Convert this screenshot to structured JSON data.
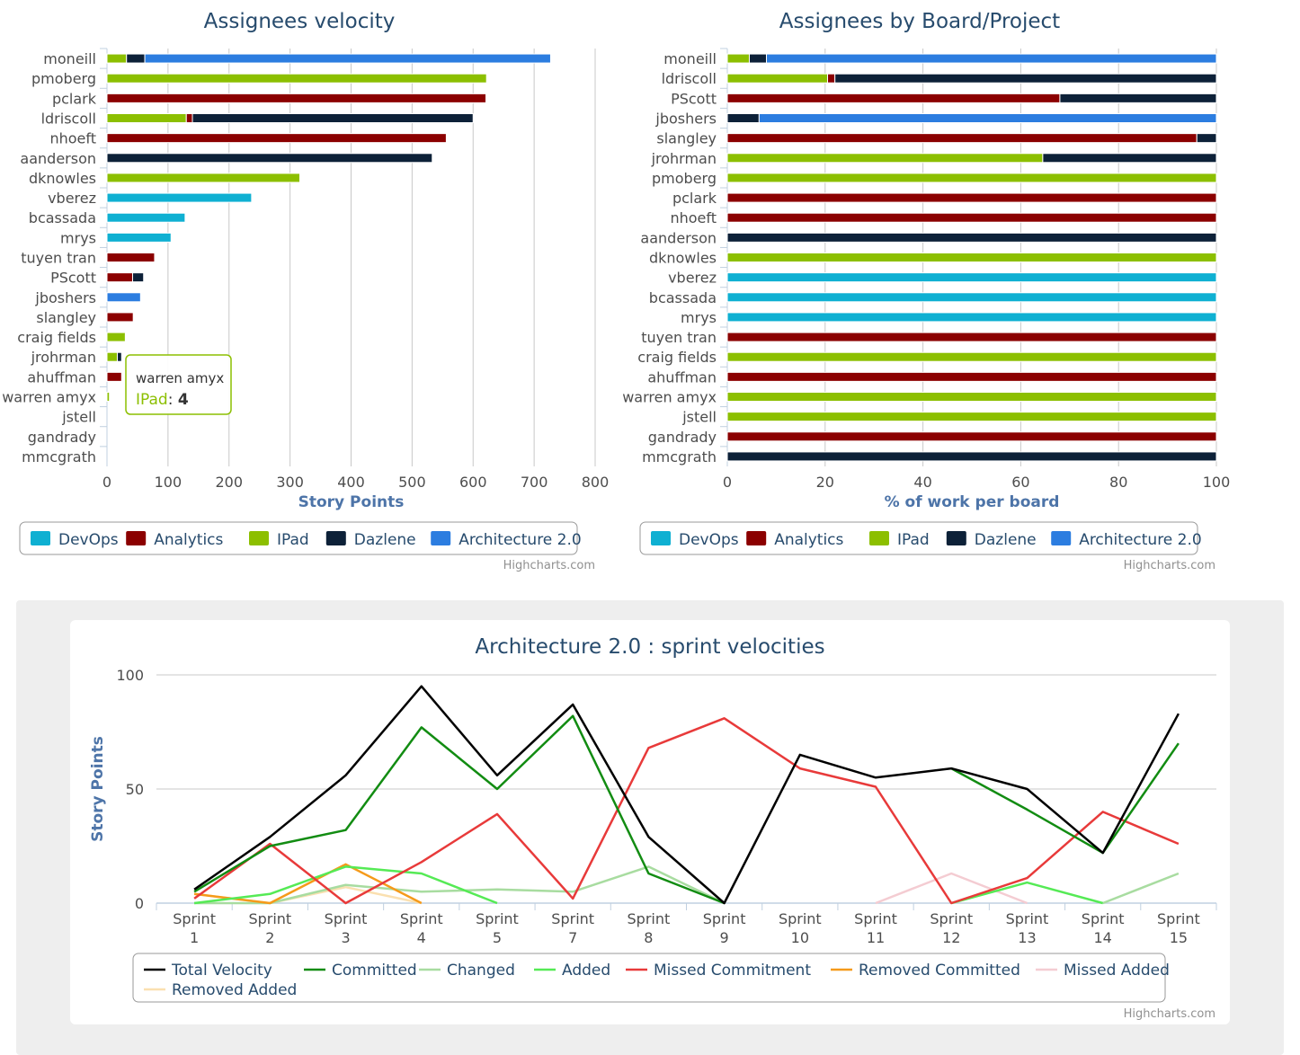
{
  "credits": "Highcharts.com",
  "colors": {
    "DevOps": "#0fb0d2",
    "Analytics": "#8b0000",
    "IPad": "#8cbf00",
    "Dazlene": "#0d2138",
    "Architecture 2.0": "#2c7de0"
  },
  "legend_boards": [
    "DevOps",
    "Analytics",
    "IPad",
    "Dazlene",
    "Architecture 2.0"
  ],
  "chart_data": [
    {
      "type": "bar",
      "title": "Assignees velocity",
      "xlabel": "",
      "ylabel": "Story Points",
      "ylim": [
        0,
        800
      ],
      "ticks": [
        0,
        100,
        200,
        300,
        400,
        500,
        600,
        700,
        800
      ],
      "grid": true,
      "stacked": true,
      "legend_position": "bottom-left",
      "categories": [
        "moneill",
        "pmoberg",
        "pclark",
        "ldriscoll",
        "nhoeft",
        "aanderson",
        "dknowles",
        "vberez",
        "bcassada",
        "mrys",
        "tuyen tran",
        "PScott",
        "jboshers",
        "slangley",
        "craig fields",
        "jrohrman",
        "ahuffman",
        "warren amyx",
        "jstell",
        "gandrady",
        "mmcgrath"
      ],
      "series": [
        {
          "name": "IPad",
          "values": [
            32,
            622,
            0,
            130,
            0,
            0,
            316,
            0,
            0,
            0,
            0,
            0,
            0,
            0,
            30,
            17,
            0,
            4,
            0,
            0,
            0
          ]
        },
        {
          "name": "Analytics",
          "values": [
            0,
            0,
            621,
            10,
            556,
            0,
            0,
            0,
            0,
            0,
            78,
            42,
            0,
            43,
            0,
            0,
            24,
            0,
            0,
            0,
            0
          ]
        },
        {
          "name": "Dazlene",
          "values": [
            30,
            0,
            0,
            460,
            0,
            533,
            0,
            0,
            0,
            0,
            0,
            18,
            0,
            0,
            0,
            7,
            0,
            0,
            0,
            0,
            0
          ]
        },
        {
          "name": "Architecture 2.0",
          "values": [
            665,
            0,
            0,
            0,
            0,
            0,
            0,
            0,
            0,
            0,
            0,
            0,
            55,
            0,
            0,
            0,
            0,
            0,
            0,
            0,
            0
          ]
        },
        {
          "name": "DevOps",
          "values": [
            0,
            0,
            0,
            0,
            0,
            0,
            0,
            237,
            128,
            105,
            0,
            0,
            0,
            0,
            0,
            0,
            0,
            0,
            0,
            0,
            0
          ]
        }
      ],
      "tooltip": {
        "name": "warren amyx",
        "series": "IPad",
        "value": "4"
      }
    },
    {
      "type": "bar",
      "title": "Assignees by Board/Project",
      "xlabel": "",
      "ylabel": "% of work per board",
      "ylim": [
        0,
        100
      ],
      "ticks": [
        0,
        20,
        40,
        60,
        80,
        100
      ],
      "grid": true,
      "stacked": true,
      "legend_position": "bottom-left",
      "categories": [
        "moneill",
        "ldriscoll",
        "PScott",
        "jboshers",
        "slangley",
        "jrohrman",
        "pmoberg",
        "pclark",
        "nhoeft",
        "aanderson",
        "dknowles",
        "vberez",
        "bcassada",
        "mrys",
        "tuyen tran",
        "craig fields",
        "ahuffman",
        "warren amyx",
        "jstell",
        "gandrady",
        "mmcgrath"
      ],
      "series": [
        {
          "name": "IPad",
          "values": [
            4.5,
            20.5,
            0,
            0,
            0,
            64.5,
            100,
            0,
            0,
            0,
            100,
            0,
            0,
            0,
            0,
            100,
            0,
            100,
            100,
            0,
            0
          ]
        },
        {
          "name": "Analytics",
          "values": [
            0,
            1.5,
            68,
            0,
            96,
            0,
            0,
            100,
            100,
            0,
            0,
            0,
            0,
            0,
            100,
            0,
            100,
            0,
            0,
            100,
            0
          ]
        },
        {
          "name": "Dazlene",
          "values": [
            3.5,
            78,
            32,
            6.5,
            4,
            35.5,
            0,
            0,
            0,
            100,
            0,
            0,
            0,
            0,
            0,
            0,
            0,
            0,
            0,
            0,
            100
          ]
        },
        {
          "name": "Architecture 2.0",
          "values": [
            92,
            0,
            0,
            93.5,
            0,
            0,
            0,
            0,
            0,
            0,
            0,
            0,
            0,
            0,
            0,
            0,
            0,
            0,
            0,
            0,
            0
          ]
        },
        {
          "name": "DevOps",
          "values": [
            0,
            0,
            0,
            0,
            0,
            0,
            0,
            0,
            0,
            0,
            0,
            100,
            100,
            100,
            0,
            0,
            0,
            0,
            0,
            0,
            0
          ]
        }
      ]
    },
    {
      "type": "line",
      "title": "Architecture 2.0 : sprint velocities",
      "xlabel": "",
      "ylabel": "Story Points",
      "ylim": [
        0,
        100
      ],
      "ticks": [
        0,
        50,
        100
      ],
      "grid": true,
      "legend_position": "bottom",
      "categories": [
        [
          "Sprint",
          "1"
        ],
        [
          "Sprint",
          "2"
        ],
        [
          "Sprint",
          "3"
        ],
        [
          "Sprint",
          "4"
        ],
        [
          "Sprint",
          "5"
        ],
        [
          "Sprint",
          "7"
        ],
        [
          "Sprint",
          "8"
        ],
        [
          "Sprint",
          "9"
        ],
        [
          "Sprint",
          "10"
        ],
        [
          "Sprint",
          "11"
        ],
        [
          "Sprint",
          "12"
        ],
        [
          "Sprint",
          "13"
        ],
        [
          "Sprint",
          "14"
        ],
        [
          "Sprint",
          "15"
        ]
      ],
      "series": [
        {
          "name": "Total Velocity",
          "color": "#000000",
          "values": [
            6,
            29,
            56,
            95,
            56,
            87,
            29,
            0,
            65,
            55,
            59,
            50,
            22,
            83
          ]
        },
        {
          "name": "Committed",
          "color": "#128c12",
          "values": [
            5,
            25,
            32,
            77,
            50,
            82,
            13,
            0,
            null,
            null,
            59,
            41,
            22,
            70
          ]
        },
        {
          "name": "Changed",
          "color": "#a8dca0",
          "values": [
            0,
            0,
            8,
            5,
            6,
            5,
            16,
            0,
            null,
            null,
            null,
            null,
            0,
            13
          ]
        },
        {
          "name": "Added",
          "color": "#55ea55",
          "values": [
            0,
            4,
            16,
            13,
            0,
            null,
            null,
            null,
            null,
            null,
            0,
            9,
            0,
            null
          ]
        },
        {
          "name": "Missed Commitment",
          "color": "#e83a3a",
          "values": [
            2,
            26,
            0,
            18,
            39,
            2,
            68,
            81,
            59,
            51,
            0,
            11,
            40,
            26
          ]
        },
        {
          "name": "Removed Committed",
          "color": "#f59a1a",
          "values": [
            4,
            0,
            17,
            0,
            null,
            null,
            null,
            null,
            null,
            null,
            null,
            null,
            null,
            null
          ]
        },
        {
          "name": "Missed Added",
          "color": "#f4ccd2",
          "values": [
            null,
            null,
            null,
            null,
            null,
            null,
            null,
            null,
            null,
            0,
            13,
            0,
            null,
            null
          ]
        },
        {
          "name": "Removed Added",
          "color": "#fae0b0",
          "values": [
            4,
            0,
            7,
            0,
            null,
            null,
            null,
            null,
            null,
            null,
            null,
            null,
            null,
            null
          ]
        }
      ]
    }
  ]
}
